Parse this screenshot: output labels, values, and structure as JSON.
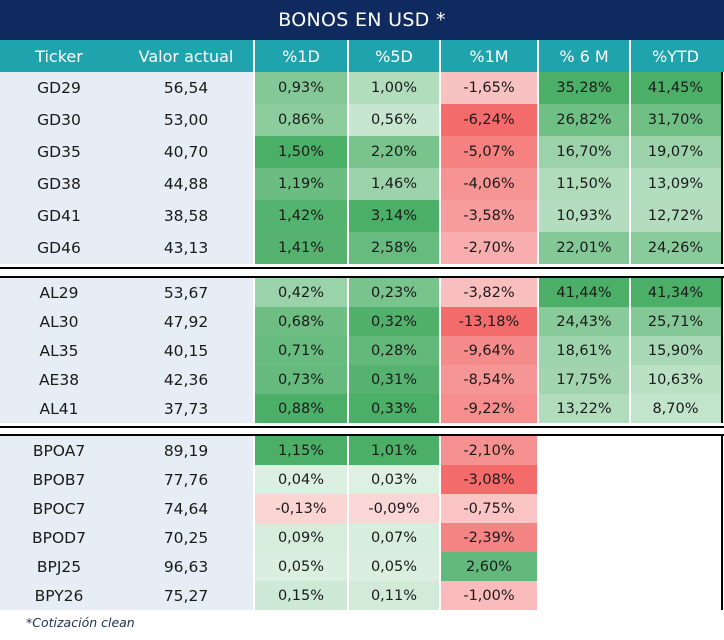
{
  "title": "BONOS EN USD *",
  "headers": [
    "Ticker",
    "Valor actual",
    "%1D",
    "%5D",
    "%1M",
    "% 6 M",
    "%YTD"
  ],
  "groups": [
    {
      "rows": [
        {
          "ticker": "GD29",
          "valor": "56,54",
          "d1": "0,93%",
          "d5": "1,00%",
          "m1": "-1,65%",
          "m6": "35,28%",
          "ytd": "41,45%"
        },
        {
          "ticker": "GD30",
          "valor": "53,00",
          "d1": "0,86%",
          "d5": "0,56%",
          "m1": "-6,24%",
          "m6": "26,82%",
          "ytd": "31,70%"
        },
        {
          "ticker": "GD35",
          "valor": "40,70",
          "d1": "1,50%",
          "d5": "2,20%",
          "m1": "-5,07%",
          "m6": "16,70%",
          "ytd": "19,07%"
        },
        {
          "ticker": "GD38",
          "valor": "44,88",
          "d1": "1,19%",
          "d5": "1,46%",
          "m1": "-4,06%",
          "m6": "11,50%",
          "ytd": "13,09%"
        },
        {
          "ticker": "GD41",
          "valor": "38,58",
          "d1": "1,42%",
          "d5": "3,14%",
          "m1": "-3,58%",
          "m6": "10,93%",
          "ytd": "12,72%"
        },
        {
          "ticker": "GD46",
          "valor": "43,13",
          "d1": "1,41%",
          "d5": "2,58%",
          "m1": "-2,70%",
          "m6": "22,01%",
          "ytd": "24,26%"
        }
      ]
    },
    {
      "rows": [
        {
          "ticker": "AL29",
          "valor": "53,67",
          "d1": "0,42%",
          "d5": "0,23%",
          "m1": "-3,82%",
          "m6": "41,44%",
          "ytd": "41,34%"
        },
        {
          "ticker": "AL30",
          "valor": "47,92",
          "d1": "0,68%",
          "d5": "0,32%",
          "m1": "-13,18%",
          "m6": "24,43%",
          "ytd": "25,71%"
        },
        {
          "ticker": "AL35",
          "valor": "40,15",
          "d1": "0,71%",
          "d5": "0,28%",
          "m1": "-9,64%",
          "m6": "18,61%",
          "ytd": "15,90%"
        },
        {
          "ticker": "AE38",
          "valor": "42,36",
          "d1": "0,73%",
          "d5": "0,31%",
          "m1": "-8,54%",
          "m6": "17,75%",
          "ytd": "10,63%"
        },
        {
          "ticker": "AL41",
          "valor": "37,73",
          "d1": "0,88%",
          "d5": "0,33%",
          "m1": "-9,22%",
          "m6": "13,22%",
          "ytd": "8,70%"
        }
      ]
    },
    {
      "rows": [
        {
          "ticker": "BPOA7",
          "valor": "89,19",
          "d1": "1,15%",
          "d5": "1,01%",
          "m1": "-2,10%",
          "m6": "",
          "ytd": ""
        },
        {
          "ticker": "BPOB7",
          "valor": "77,76",
          "d1": "0,04%",
          "d5": "0,03%",
          "m1": "-3,08%",
          "m6": "",
          "ytd": ""
        },
        {
          "ticker": "BPOC7",
          "valor": "74,64",
          "d1": "-0,13%",
          "d5": "-0,09%",
          "m1": "-0,75%",
          "m6": "",
          "ytd": ""
        },
        {
          "ticker": "BPOD7",
          "valor": "70,25",
          "d1": "0,09%",
          "d5": "0,07%",
          "m1": "-2,39%",
          "m6": "",
          "ytd": ""
        },
        {
          "ticker": "BPJ25",
          "valor": "96,63",
          "d1": "0,05%",
          "d5": "0,05%",
          "m1": "2,60%",
          "m6": "",
          "ytd": ""
        },
        {
          "ticker": "BPY26",
          "valor": "75,27",
          "d1": "0,15%",
          "d5": "0,11%",
          "m1": "-1,00%",
          "m6": "",
          "ytd": ""
        }
      ]
    }
  ],
  "colors": {
    "title_bg": "#0f2a5e",
    "header_bg": "#1fa3ac",
    "ticker_bg": "#e7edf5",
    "positive": "#4caf67",
    "negative": "#f36b6b"
  },
  "footnote": "*Cotización clean"
}
